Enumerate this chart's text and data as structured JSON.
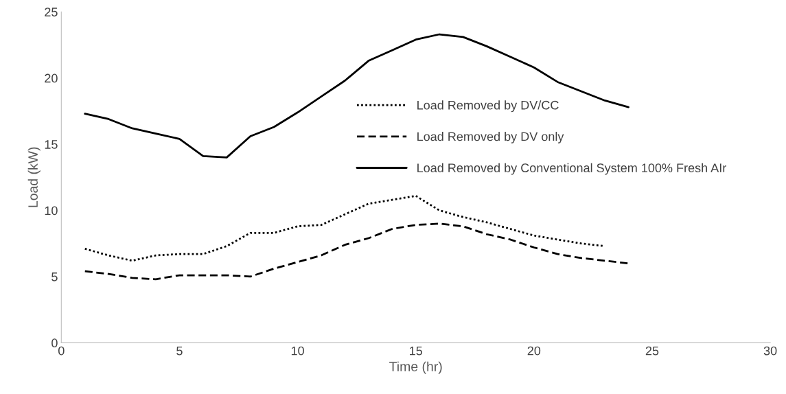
{
  "chart_data": {
    "type": "line",
    "xlabel": "Time (hr)",
    "ylabel": "Load (kW)",
    "x": [
      1,
      2,
      3,
      4,
      5,
      6,
      7,
      8,
      9,
      10,
      11,
      12,
      13,
      14,
      15,
      16,
      17,
      18,
      19,
      20,
      21,
      22,
      23,
      24
    ],
    "series": [
      {
        "name": "Load Removed by DV/CC",
        "color": "#000000",
        "line_style": "dotted",
        "x": [
          1,
          2,
          3,
          4,
          5,
          6,
          7,
          8,
          9,
          10,
          11,
          12,
          13,
          14,
          15,
          16,
          17,
          18,
          19,
          20,
          21,
          22,
          23
        ],
        "values": [
          7.1,
          6.6,
          6.2,
          6.6,
          6.7,
          6.7,
          7.3,
          8.3,
          8.3,
          8.8,
          8.9,
          9.7,
          10.5,
          10.8,
          11.1,
          10.0,
          9.5,
          9.1,
          8.6,
          8.1,
          7.8,
          7.5,
          7.3
        ]
      },
      {
        "name": "Load Removed by DV only",
        "color": "#000000",
        "line_style": "dashed",
        "values": [
          5.4,
          5.2,
          4.9,
          4.8,
          5.1,
          5.1,
          5.1,
          5.0,
          5.6,
          6.1,
          6.6,
          7.4,
          7.9,
          8.6,
          8.9,
          9.0,
          8.8,
          8.2,
          7.8,
          7.2,
          6.7,
          6.4,
          6.2,
          6.0
        ]
      },
      {
        "name": "Load Removed by Conventional System 100% Fresh AIr",
        "color": "#000000",
        "line_style": "solid",
        "values": [
          17.3,
          16.9,
          16.2,
          15.8,
          15.4,
          14.1,
          14.0,
          15.6,
          16.3,
          17.4,
          18.6,
          19.8,
          21.3,
          22.1,
          22.9,
          23.3,
          23.1,
          22.4,
          21.6,
          20.8,
          19.7,
          19.0,
          18.3,
          17.8
        ]
      }
    ],
    "xlim": [
      0,
      30
    ],
    "xticks": [
      0,
      5,
      10,
      15,
      20,
      25,
      30
    ],
    "ylim": [
      0,
      25
    ],
    "yticks": [
      0,
      5,
      10,
      15,
      20,
      25
    ],
    "grid": false,
    "legend": "right",
    "marker": "none"
  }
}
